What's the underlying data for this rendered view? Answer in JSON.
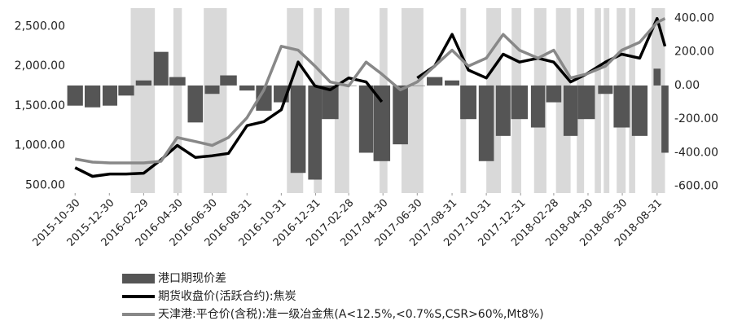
{
  "chart_data": {
    "type": "combo",
    "x": [
      "2015-10-30",
      "2015-11-30",
      "2015-12-31",
      "2016-01-29",
      "2016-02-29",
      "2016-03-31",
      "2016-04-29",
      "2016-05-31",
      "2016-06-30",
      "2016-07-29",
      "2016-08-31",
      "2016-09-30",
      "2016-10-31",
      "2016-11-30",
      "2016-12-30",
      "2017-01-26",
      "2017-02-28",
      "2017-03-31",
      "2017-04-28",
      "2017-05-31",
      "2017-06-30",
      "2017-07-31",
      "2017-08-31",
      "2017-09-29",
      "2017-10-31",
      "2017-11-30",
      "2017-12-29",
      "2018-01-31",
      "2018-02-28",
      "2018-03-30",
      "2018-04-27",
      "2018-05-31",
      "2018-06-29",
      "2018-07-31",
      "2018-08-31",
      "2018-09-14"
    ],
    "series": [
      {
        "name": "港口期现价差",
        "kind": "bar",
        "axis": "y2",
        "color": "#555555",
        "values": [
          -120,
          -130,
          -120,
          -60,
          30,
          200,
          50,
          -220,
          -50,
          60,
          -30,
          -150,
          -100,
          -520,
          -560,
          -200,
          0,
          -400,
          -450,
          -350,
          0,
          50,
          30,
          -200,
          -450,
          -300,
          -200,
          -250,
          -100,
          -300,
          -200,
          -50,
          -250,
          -300,
          100,
          -400
        ]
      },
      {
        "name": "期货收盘价(活跃合约):焦炭",
        "kind": "line",
        "color": "#000000",
        "values": [
          720,
          610,
          640,
          640,
          650,
          820,
          1000,
          850,
          870,
          900,
          1250,
          1300,
          1450,
          2050,
          1750,
          1700,
          1850,
          1800,
          1550,
          null,
          1850,
          2000,
          2400,
          1950,
          1850,
          2150,
          2050,
          2100,
          2050,
          1800,
          1900,
          2050,
          2150,
          2100,
          2600,
          2250
        ]
      },
      {
        "name": "天津港:平仓价(含税):准一级冶金焦(A<12.5%,<0.7%S,CSR>60%,Mt8%)",
        "kind": "line",
        "color": "#888888",
        "values": [
          830,
          790,
          780,
          780,
          780,
          800,
          1100,
          1050,
          1000,
          1100,
          1350,
          1700,
          2250,
          2200,
          2000,
          1800,
          1750,
          2050,
          1900,
          1700,
          1800,
          2000,
          2200,
          2000,
          2100,
          2400,
          2200,
          2100,
          2200,
          1850,
          1900,
          2000,
          2200,
          2300,
          2550,
          2600
        ]
      }
    ],
    "shaded_periods": [
      [
        "2016-02-06",
        "2016-03-20"
      ],
      [
        "2016-04-22",
        "2016-05-07"
      ],
      [
        "2016-06-15",
        "2016-07-26"
      ],
      [
        "2016-11-10",
        "2016-12-09"
      ],
      [
        "2016-12-28",
        "2017-01-11"
      ],
      [
        "2017-02-03",
        "2017-03-01"
      ],
      [
        "2017-04-24",
        "2017-05-08"
      ],
      [
        "2017-06-02",
        "2017-07-11"
      ],
      [
        "2017-09-15",
        "2017-09-25"
      ],
      [
        "2017-10-31",
        "2017-11-26"
      ],
      [
        "2017-12-15",
        "2018-01-01"
      ],
      [
        "2018-01-24",
        "2018-02-15"
      ],
      [
        "2018-03-04",
        "2018-03-30"
      ],
      [
        "2018-04-10",
        "2018-04-23"
      ],
      [
        "2018-05-12",
        "2018-05-23"
      ],
      [
        "2018-05-28",
        "2018-06-07"
      ],
      [
        "2018-06-20",
        "2018-07-06"
      ],
      [
        "2018-07-12",
        "2018-07-23"
      ],
      [
        "2018-08-21",
        "2018-09-14"
      ]
    ],
    "shade_color": "#d9d9d9",
    "xlim": [
      "2015-10-21",
      "2018-09-22"
    ],
    "xticks": [
      "2015-10-30",
      "2015-12-30",
      "2016-02-29",
      "2016-04-30",
      "2016-06-30",
      "2016-08-31",
      "2016-10-31",
      "2016-12-31",
      "2017-02-28",
      "2017-04-30",
      "2017-06-30",
      "2017-08-31",
      "2017-10-31",
      "2017-12-31",
      "2018-02-28",
      "2018-04-30",
      "2018-06-30",
      "2018-08-31"
    ],
    "ylim": [
      400,
      2730
    ],
    "yticks": [
      {
        "value": 500,
        "label": "500.00"
      },
      {
        "value": 1000,
        "label": "1,000.00"
      },
      {
        "value": 1500,
        "label": "1,500.00"
      },
      {
        "value": 2000,
        "label": "2,000.00"
      },
      {
        "value": 2500,
        "label": "2,500.00"
      }
    ],
    "y2lim": [
      -640,
      460
    ],
    "y2ticks": [
      {
        "value": 400,
        "label": "400.00"
      },
      {
        "value": 200,
        "label": "200.00"
      },
      {
        "value": 0,
        "label": "0.00"
      },
      {
        "value": -200,
        "label": "-200.00"
      },
      {
        "value": -400,
        "label": "-400.00"
      },
      {
        "value": -600,
        "label": "-600.00"
      }
    ],
    "legend": "bottom"
  }
}
